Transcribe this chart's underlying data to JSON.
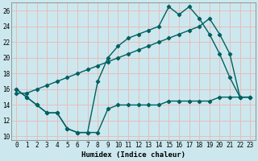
{
  "xlabel": "Humidex (Indice chaleur)",
  "bg_color": "#cce8ee",
  "grid_color": "#e8bbbb",
  "line_color": "#006060",
  "xlim": [
    -0.5,
    23.5
  ],
  "ylim": [
    9.5,
    27.0
  ],
  "xticks": [
    0,
    1,
    2,
    3,
    4,
    5,
    6,
    7,
    8,
    9,
    10,
    11,
    12,
    13,
    14,
    15,
    16,
    17,
    18,
    19,
    20,
    21,
    22,
    23
  ],
  "yticks": [
    10,
    12,
    14,
    16,
    18,
    20,
    22,
    24,
    26
  ],
  "line1_x": [
    0,
    1,
    2,
    3,
    4,
    5,
    6,
    7,
    8,
    9,
    10,
    11,
    12,
    13,
    14,
    15,
    16,
    17,
    18,
    19,
    20,
    21,
    22,
    23
  ],
  "line1_y": [
    16,
    15,
    14,
    13,
    13,
    11,
    10.5,
    10.5,
    10.5,
    13.5,
    14,
    14,
    14,
    14,
    14,
    14.5,
    14.5,
    14.5,
    14.5,
    14.5,
    15,
    15,
    15,
    15
  ],
  "line2_x": [
    0,
    1,
    2,
    3,
    4,
    5,
    6,
    7,
    8,
    9,
    10,
    11,
    12,
    13,
    14,
    15,
    16,
    17,
    18,
    19,
    20,
    21,
    22,
    23
  ],
  "line2_y": [
    15.5,
    15.5,
    16,
    16.5,
    17,
    17.5,
    18,
    18.5,
    19,
    19.5,
    20,
    20.5,
    21,
    21.5,
    22,
    22.5,
    23,
    23.5,
    24,
    25,
    23,
    20.5,
    15,
    15
  ],
  "line3_x": [
    0,
    1,
    2,
    3,
    4,
    5,
    6,
    7,
    8,
    9,
    10,
    11,
    12,
    13,
    14,
    15,
    16,
    17,
    18,
    19,
    20,
    21,
    22,
    23
  ],
  "line3_y": [
    16,
    15,
    14,
    13,
    13,
    11,
    10.5,
    10.5,
    17,
    20,
    21.5,
    22.5,
    23,
    23.5,
    24,
    26.5,
    25.5,
    26.5,
    25,
    23,
    20.5,
    17.5,
    15,
    15
  ],
  "tick_fontsize": 5.5,
  "xlabel_fontsize": 6.5,
  "linewidth": 1.0,
  "markersize": 2.2
}
